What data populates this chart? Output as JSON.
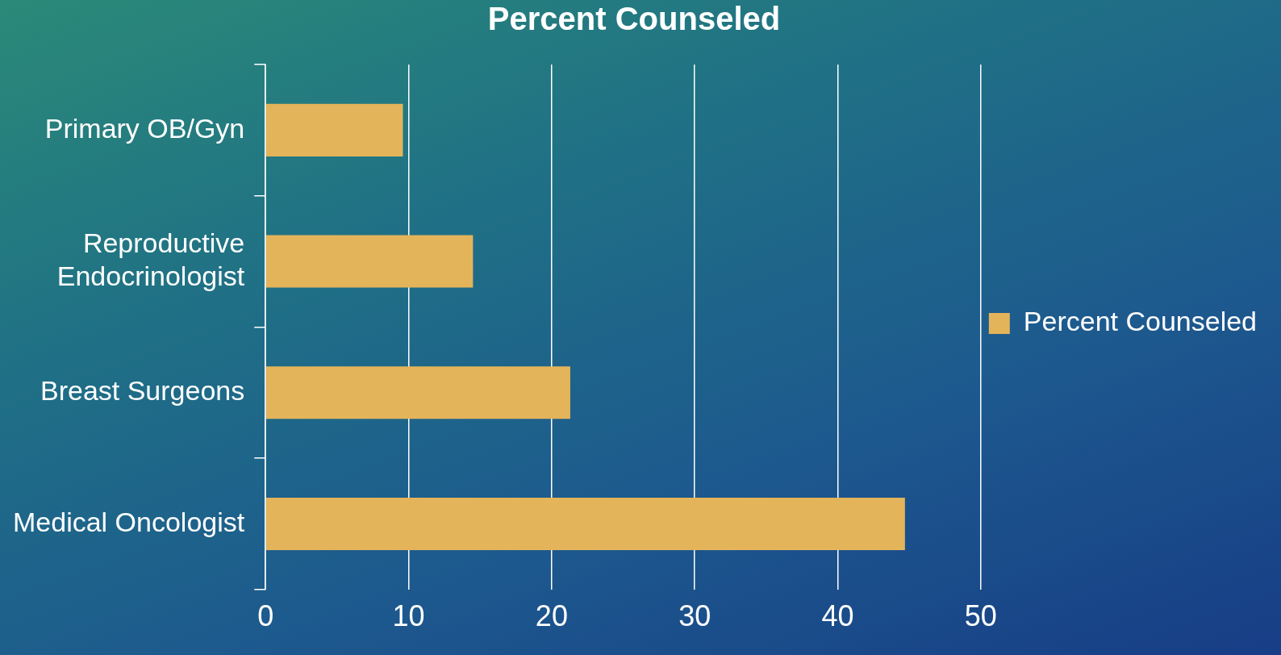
{
  "chart_data": {
    "type": "bar",
    "orientation": "horizontal",
    "title": "Percent Counseled",
    "categories": [
      "Primary OB/Gyn",
      "Reproductive\nEndocrinologist",
      "Breast Surgeons",
      "Medical Oncologist"
    ],
    "series": [
      {
        "name": "Percent Counseled",
        "color": "#e4b45a",
        "values": [
          9.6,
          14.5,
          21.3,
          44.7
        ]
      }
    ],
    "xlim": [
      0,
      50
    ],
    "xticks": [
      0,
      10,
      20,
      30,
      40,
      50
    ],
    "grid": "x",
    "legend": "right"
  }
}
